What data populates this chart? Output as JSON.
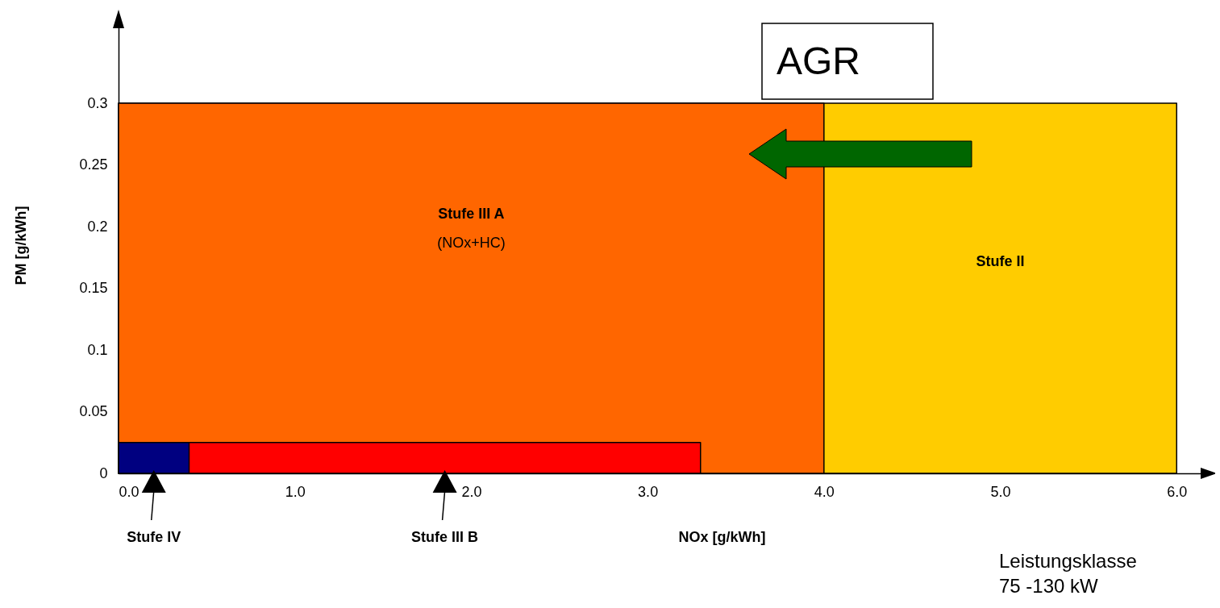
{
  "chart_data": {
    "type": "area",
    "xlabel": "NOx [g/kWh]",
    "ylabel": "PM [g/kWh]",
    "xlim": [
      0,
      6.2
    ],
    "ylim": [
      0,
      0.37
    ],
    "xticks": [
      {
        "value": 0,
        "label": "0.0"
      },
      {
        "value": 1,
        "label": "1.0"
      },
      {
        "value": 2,
        "label": "2.0"
      },
      {
        "value": 3,
        "label": "3.0"
      },
      {
        "value": 4,
        "label": "4.0"
      },
      {
        "value": 5,
        "label": "5.0"
      },
      {
        "value": 6,
        "label": "6.0"
      }
    ],
    "yticks": [
      0,
      0.05,
      0.1,
      0.15,
      0.2,
      0.25,
      0.3
    ],
    "series": [
      {
        "name": "Stufe II",
        "color": "#ffcc00",
        "x": [
          0,
          6
        ],
        "values": [
          0.3,
          0.3
        ]
      },
      {
        "name": "Stufe III A",
        "color": "#ff6600",
        "x": [
          0,
          4
        ],
        "values": [
          0.3,
          0.3
        ]
      },
      {
        "name": "Stufe III B",
        "color": "#ff0000",
        "x": [
          0,
          3.3
        ],
        "values": [
          0.025,
          0.025
        ]
      },
      {
        "name": "Stufe IV",
        "color": "#000080",
        "x": [
          0,
          0.4
        ],
        "values": [
          0.025,
          0.025
        ]
      }
    ],
    "legend": "bottom left",
    "annotations": [
      "(NOx+HC)",
      "AGR",
      "Leistungsklasse\n75 -130 kW"
    ]
  }
}
